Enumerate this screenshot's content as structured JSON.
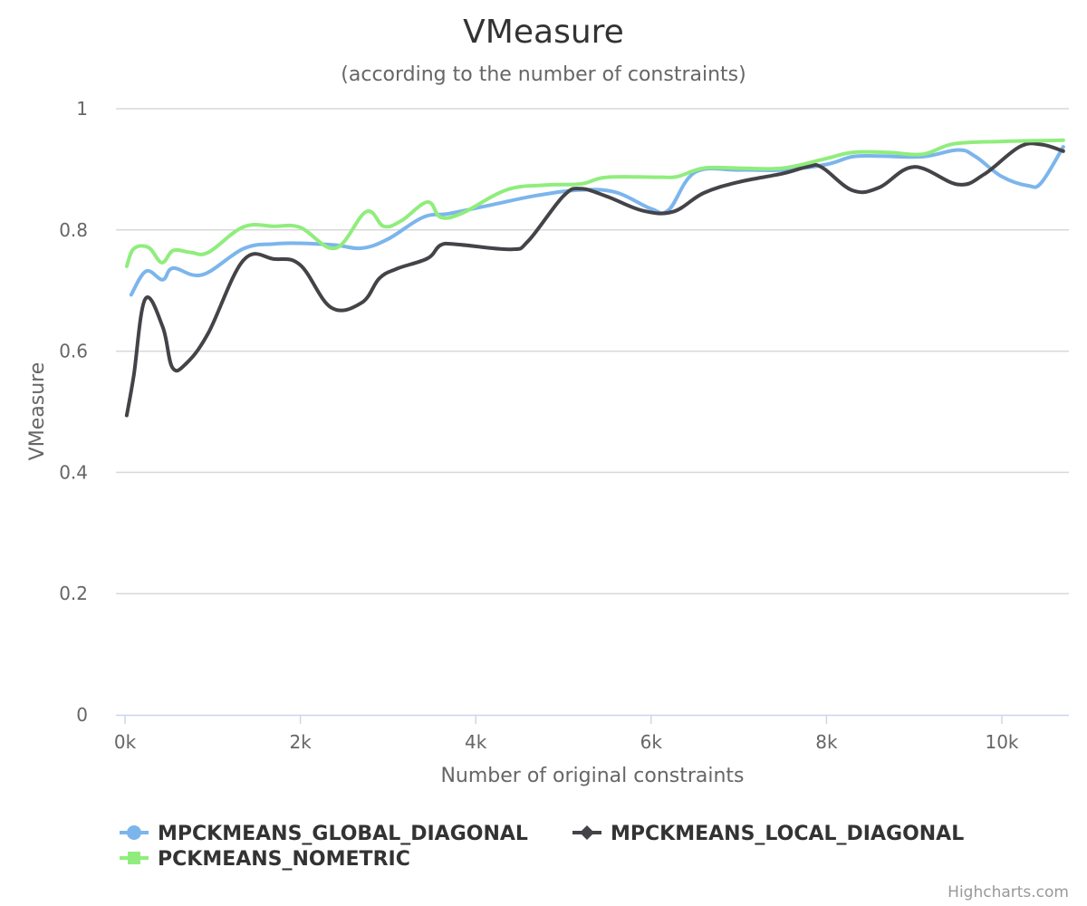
{
  "chart_data": {
    "type": "line",
    "title": "VMeasure",
    "subtitle": "(according to the number of constraints)",
    "xlabel": "Number of original constraints",
    "ylabel": "VMeasure",
    "xlim": [
      0,
      10700
    ],
    "ylim": [
      0,
      1
    ],
    "x_ticks": [
      {
        "value": 0,
        "label": "0k"
      },
      {
        "value": 2000,
        "label": "2k"
      },
      {
        "value": 4000,
        "label": "4k"
      },
      {
        "value": 6000,
        "label": "6k"
      },
      {
        "value": 8000,
        "label": "8k"
      },
      {
        "value": 10000,
        "label": "10k"
      }
    ],
    "y_ticks": [
      {
        "value": 0,
        "label": "0"
      },
      {
        "value": 0.2,
        "label": "0.2"
      },
      {
        "value": 0.4,
        "label": "0.4"
      },
      {
        "value": 0.6,
        "label": "0.6"
      },
      {
        "value": 0.8,
        "label": "0.8"
      },
      {
        "value": 1,
        "label": "1"
      }
    ],
    "grid": true,
    "legend_position": "bottom-left",
    "series": [
      {
        "name": "MPCKMEANS_GLOBAL_DIAGONAL",
        "color": "#7cb5ec",
        "marker": "circle",
        "points": [
          [
            70,
            0.693
          ],
          [
            240,
            0.732
          ],
          [
            430,
            0.718
          ],
          [
            550,
            0.737
          ],
          [
            880,
            0.726
          ],
          [
            1350,
            0.769
          ],
          [
            1700,
            0.777
          ],
          [
            2000,
            0.778
          ],
          [
            2400,
            0.775
          ],
          [
            2700,
            0.77
          ],
          [
            3000,
            0.785
          ],
          [
            3400,
            0.821
          ],
          [
            3700,
            0.827
          ],
          [
            4200,
            0.842
          ],
          [
            4700,
            0.857
          ],
          [
            5200,
            0.866
          ],
          [
            5600,
            0.862
          ],
          [
            6000,
            0.835
          ],
          [
            6200,
            0.833
          ],
          [
            6500,
            0.895
          ],
          [
            7000,
            0.899
          ],
          [
            7500,
            0.899
          ],
          [
            8000,
            0.908
          ],
          [
            8300,
            0.921
          ],
          [
            8600,
            0.922
          ],
          [
            9100,
            0.921
          ],
          [
            9500,
            0.932
          ],
          [
            9700,
            0.921
          ],
          [
            10000,
            0.888
          ],
          [
            10300,
            0.873
          ],
          [
            10450,
            0.878
          ],
          [
            10700,
            0.937
          ]
        ]
      },
      {
        "name": "MPCKMEANS_LOCAL_DIAGONAL",
        "color": "#434348",
        "marker": "diamond",
        "points": [
          [
            20,
            0.494
          ],
          [
            100,
            0.56
          ],
          [
            230,
            0.686
          ],
          [
            430,
            0.64
          ],
          [
            540,
            0.573
          ],
          [
            700,
            0.58
          ],
          [
            950,
            0.63
          ],
          [
            1350,
            0.75
          ],
          [
            1700,
            0.752
          ],
          [
            2000,
            0.742
          ],
          [
            2350,
            0.672
          ],
          [
            2700,
            0.68
          ],
          [
            2900,
            0.72
          ],
          [
            3100,
            0.736
          ],
          [
            3450,
            0.753
          ],
          [
            3600,
            0.775
          ],
          [
            3800,
            0.776
          ],
          [
            4400,
            0.768
          ],
          [
            4600,
            0.782
          ],
          [
            5000,
            0.856
          ],
          [
            5200,
            0.868
          ],
          [
            5500,
            0.855
          ],
          [
            5900,
            0.832
          ],
          [
            6250,
            0.83
          ],
          [
            6600,
            0.861
          ],
          [
            7000,
            0.879
          ],
          [
            7500,
            0.893
          ],
          [
            7800,
            0.905
          ],
          [
            7950,
            0.903
          ],
          [
            8300,
            0.865
          ],
          [
            8600,
            0.87
          ],
          [
            9000,
            0.904
          ],
          [
            9500,
            0.875
          ],
          [
            9800,
            0.892
          ],
          [
            10200,
            0.937
          ],
          [
            10450,
            0.941
          ],
          [
            10700,
            0.93
          ]
        ]
      },
      {
        "name": "PCKMEANS_NOMETRIC",
        "color": "#90ed7d",
        "marker": "square",
        "points": [
          [
            20,
            0.74
          ],
          [
            100,
            0.769
          ],
          [
            270,
            0.771
          ],
          [
            420,
            0.746
          ],
          [
            550,
            0.766
          ],
          [
            750,
            0.763
          ],
          [
            950,
            0.763
          ],
          [
            1350,
            0.805
          ],
          [
            1700,
            0.806
          ],
          [
            2000,
            0.804
          ],
          [
            2400,
            0.77
          ],
          [
            2750,
            0.83
          ],
          [
            2950,
            0.806
          ],
          [
            3150,
            0.815
          ],
          [
            3450,
            0.846
          ],
          [
            3600,
            0.821
          ],
          [
            3850,
            0.828
          ],
          [
            4350,
            0.866
          ],
          [
            4800,
            0.874
          ],
          [
            5200,
            0.876
          ],
          [
            5500,
            0.887
          ],
          [
            6100,
            0.887
          ],
          [
            6300,
            0.888
          ],
          [
            6600,
            0.902
          ],
          [
            7000,
            0.902
          ],
          [
            7500,
            0.902
          ],
          [
            8000,
            0.918
          ],
          [
            8300,
            0.928
          ],
          [
            8700,
            0.928
          ],
          [
            9100,
            0.925
          ],
          [
            9450,
            0.942
          ],
          [
            10000,
            0.946
          ],
          [
            10700,
            0.948
          ]
        ]
      }
    ],
    "credits": "Highcharts.com"
  }
}
